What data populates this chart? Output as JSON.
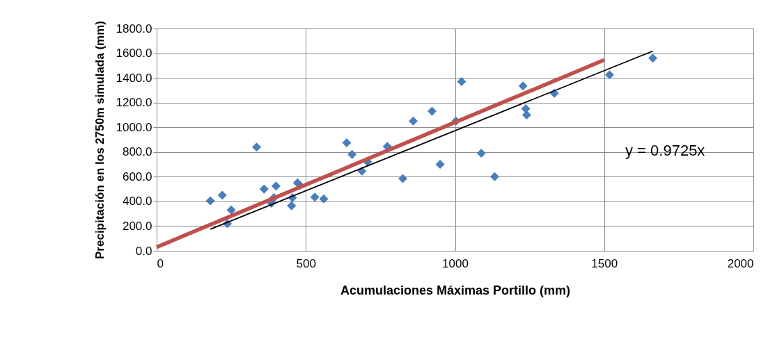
{
  "chart_data": {
    "type": "scatter",
    "xlabel": "Acumulaciones Máximas Portillo (mm)",
    "ylabel": "Precipitación en los 2750m simulada (mm)",
    "xlim": [
      0,
      2000
    ],
    "xticks": [
      0,
      500,
      1000,
      1500,
      2000
    ],
    "ylim": [
      0,
      1800
    ],
    "yticks": [
      {
        "value": 0,
        "label": "0.0"
      },
      {
        "value": 200,
        "label": "200.0"
      },
      {
        "value": 400,
        "label": "400.0"
      },
      {
        "value": 600,
        "label": "600.0"
      },
      {
        "value": 800,
        "label": "800.0"
      },
      {
        "value": 1000,
        "label": "1000.0"
      },
      {
        "value": 1200,
        "label": "1200.0"
      },
      {
        "value": 1400,
        "label": "1400.0"
      },
      {
        "value": 1600,
        "label": "1600.0"
      },
      {
        "value": 1800,
        "label": "1800.0"
      }
    ],
    "grid": true,
    "marker": "diamond",
    "annotations": [
      "y = 0.9725x"
    ],
    "series": [
      {
        "color": "#4a7ebb",
        "x": [
          180,
          220,
          237,
          250,
          335,
          360,
          385,
          393,
          400,
          452,
          455,
          472,
          480,
          530,
          560,
          637,
          655,
          688,
          707,
          773,
          825,
          860,
          923,
          950,
          1003,
          1022,
          1088,
          1133,
          1228,
          1237,
          1240,
          1333,
          1518,
          1663
        ],
        "values": [
          405,
          450,
          220,
          330,
          840,
          500,
          385,
          430,
          525,
          365,
          430,
          550,
          530,
          435,
          420,
          875,
          780,
          645,
          720,
          845,
          585,
          1050,
          1130,
          700,
          1050,
          1370,
          790,
          600,
          1335,
          1150,
          1100,
          1275,
          1425,
          1560
        ]
      },
      {
        "type": "line",
        "marker": "none",
        "line_style": "solid",
        "color": "#000000",
        "x": [
          180,
          1663
        ],
        "values": [
          175,
          1617
        ]
      },
      {
        "type": "line",
        "marker": "none",
        "line_style": "solid",
        "color": "#c0504d",
        "x": [
          0,
          1500
        ],
        "values": [
          30,
          1545
        ]
      }
    ]
  }
}
